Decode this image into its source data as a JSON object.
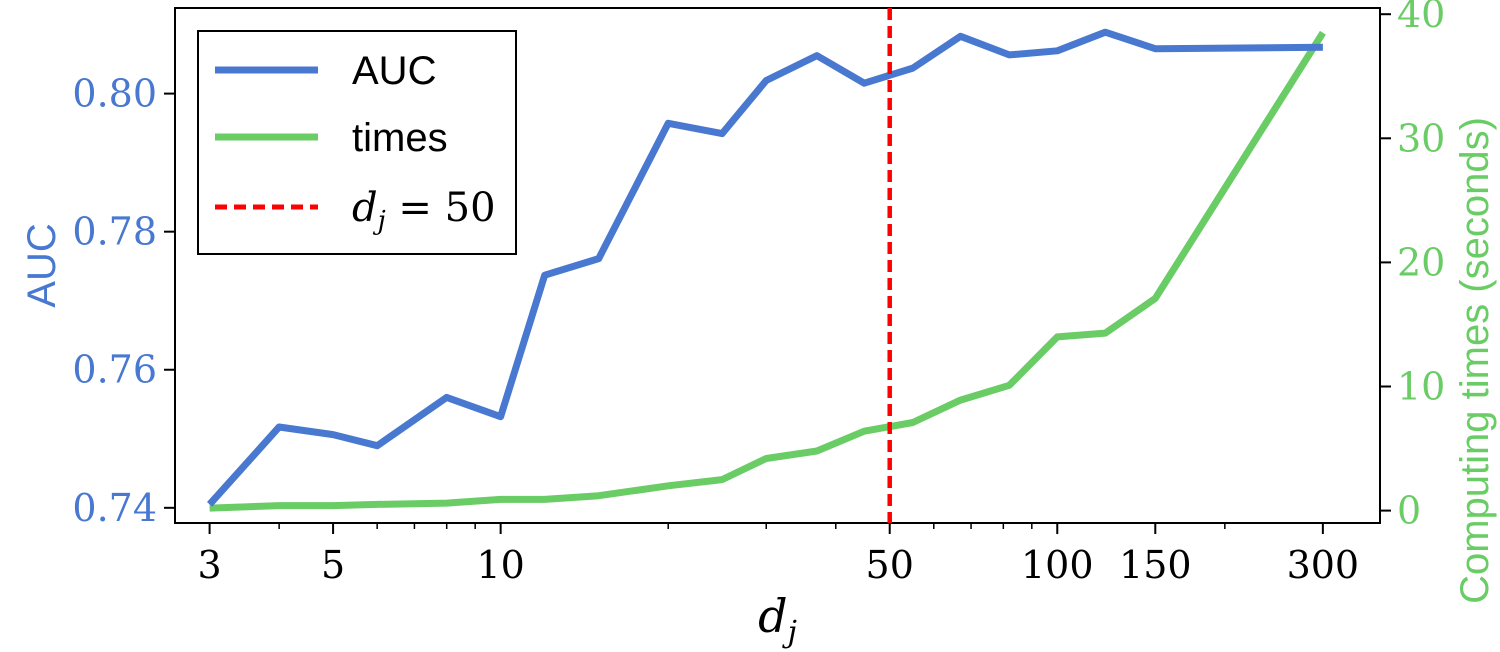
{
  "chart_data": {
    "type": "line",
    "x_axis": {
      "label_base": "d",
      "label_subscript": "j",
      "scale": "log",
      "range": [
        2.6,
        380
      ],
      "ticks": [
        3,
        5,
        10,
        50,
        100,
        150,
        300
      ],
      "tick_labels": [
        "3",
        "5",
        "10",
        "50",
        "100",
        "150",
        "300"
      ]
    },
    "y_left": {
      "label": "AUC",
      "range": [
        0.7378,
        0.8124
      ],
      "ticks": [
        0.74,
        0.76,
        0.78,
        0.8
      ],
      "tick_labels": [
        "0.74",
        "0.76",
        "0.78",
        "0.80"
      ],
      "color": "#4878cf"
    },
    "y_right": {
      "label": "Computing times (seconds)",
      "range": [
        -1.0,
        40.5
      ],
      "ticks": [
        0,
        10,
        20,
        30,
        40
      ],
      "tick_labels": [
        "0",
        "10",
        "20",
        "30",
        "40"
      ],
      "color": "#6acc65"
    },
    "series": [
      {
        "name": "AUC",
        "axis": "left",
        "color": "#4878cf",
        "x": [
          3,
          4,
          5,
          6,
          8,
          10,
          12,
          15,
          20,
          25,
          30,
          37,
          45,
          55,
          67,
          82,
          100,
          122,
          150,
          300
        ],
        "values": [
          0.7405,
          0.7517,
          0.7506,
          0.749,
          0.756,
          0.7532,
          0.7737,
          0.7761,
          0.7957,
          0.7942,
          0.8019,
          0.8055,
          0.8015,
          0.8037,
          0.8083,
          0.8056,
          0.8062,
          0.8089,
          0.8065,
          0.8067
        ]
      },
      {
        "name": "times",
        "axis": "right",
        "color": "#6acc65",
        "x": [
          3,
          4,
          5,
          6,
          8,
          10,
          12,
          15,
          20,
          25,
          30,
          37,
          45,
          55,
          67,
          82,
          100,
          122,
          150,
          300
        ],
        "values": [
          0.2,
          0.4,
          0.4,
          0.5,
          0.6,
          0.9,
          0.9,
          1.2,
          2.0,
          2.5,
          4.2,
          4.8,
          6.4,
          7.1,
          8.9,
          10.1,
          14.0,
          14.3,
          17.1,
          38.5
        ]
      }
    ],
    "reference_line": {
      "x": 50,
      "color": "#ff0000",
      "style": "dashed",
      "label_base": "d",
      "label_subscript": "j",
      "label_rest": " = 50"
    },
    "legend": {
      "placement": "top-left",
      "entries": [
        {
          "label": "AUC",
          "color": "#4878cf",
          "style": "solid"
        },
        {
          "label": "times",
          "color": "#6acc65",
          "style": "solid"
        },
        {
          "label": "dj = 50",
          "color": "#ff0000",
          "style": "dashed"
        }
      ]
    },
    "grid": false
  }
}
